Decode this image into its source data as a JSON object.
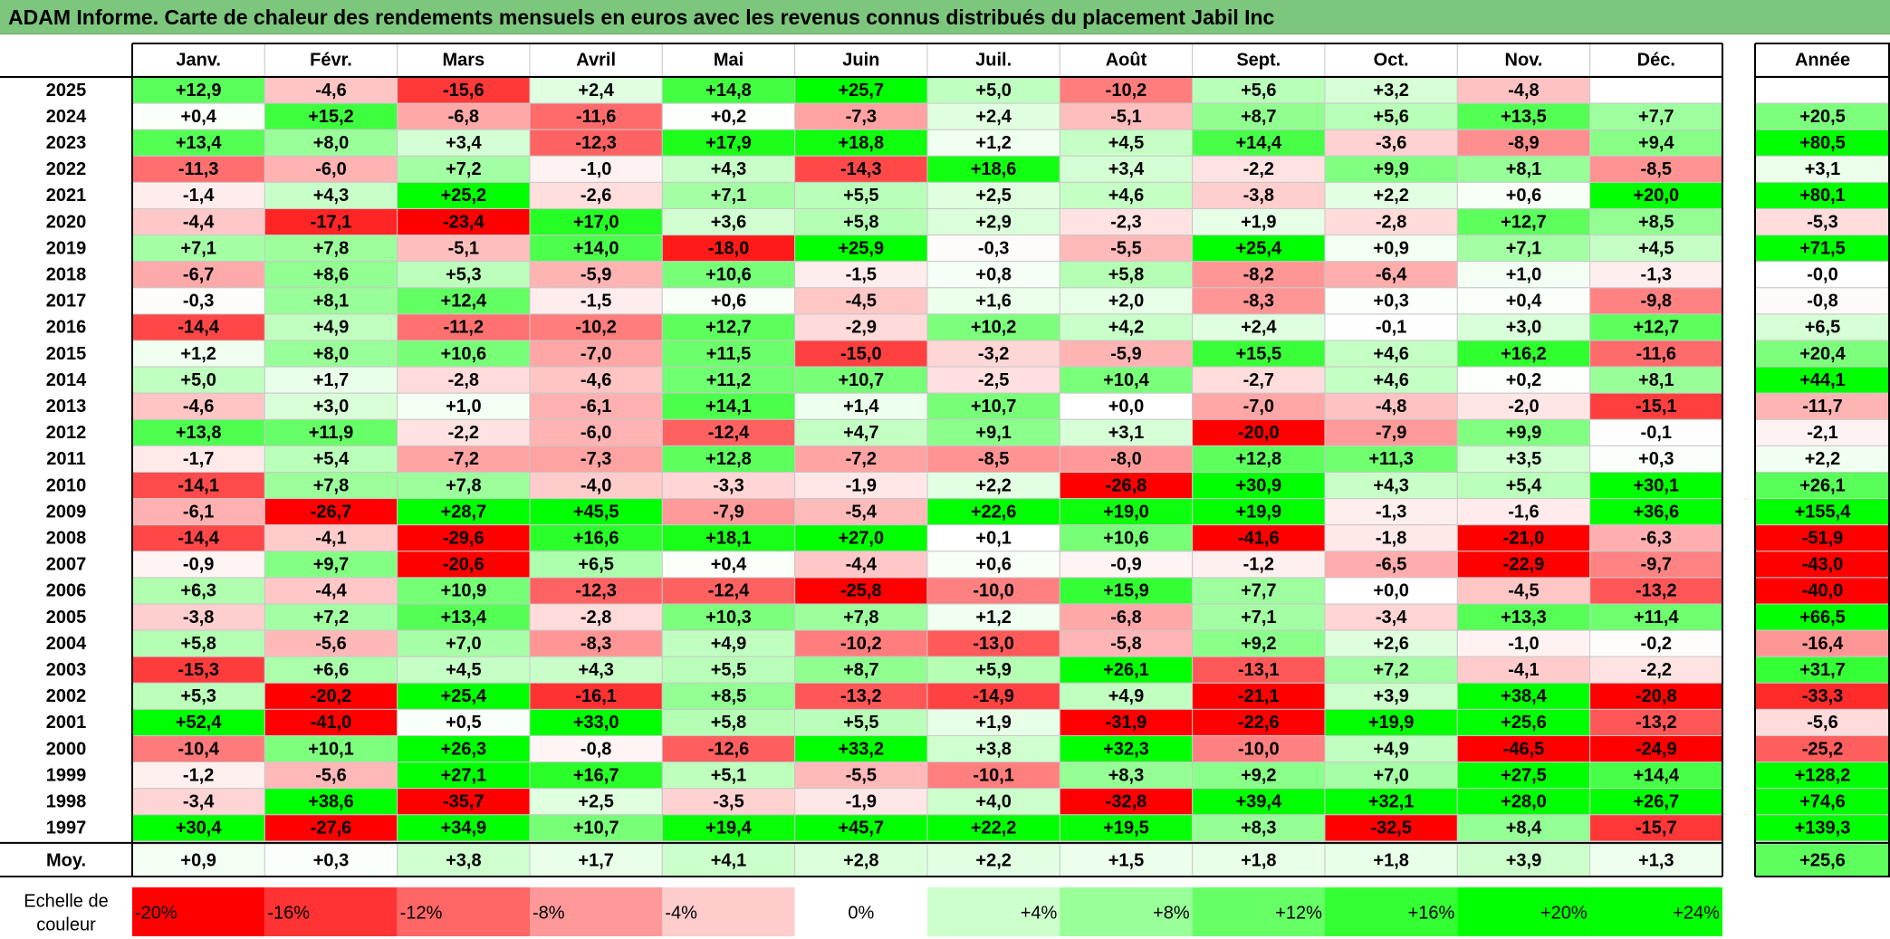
{
  "title": "ADAM Informe. Carte de chaleur des rendements mensuels en euros avec les revenus connus distribués du placement Jabil Inc",
  "chart_data": {
    "type": "heatmap",
    "title": "ADAM Informe. Carte de chaleur des rendements mensuels en euros avec les revenus connus distribués du placement Jabil Inc",
    "columns": [
      "Janv.",
      "Févr.",
      "Mars",
      "Avril",
      "Mai",
      "Juin",
      "Juil.",
      "Août",
      "Sept.",
      "Oct.",
      "Nov.",
      "Déc."
    ],
    "year_column_label": "Année",
    "rows": [
      {
        "year": "2025",
        "values": [
          "+12,9",
          "-4,6",
          "-15,6",
          "+2,4",
          "+14,8",
          "+25,7",
          "+5,0",
          "-10,2",
          "+5,6",
          "+3,2",
          "-4,8",
          ""
        ],
        "annual": ""
      },
      {
        "year": "2024",
        "values": [
          "+0,4",
          "+15,2",
          "-6,8",
          "-11,6",
          "+0,2",
          "-7,3",
          "+2,4",
          "-5,1",
          "+8,7",
          "+5,6",
          "+13,5",
          "+7,7"
        ],
        "annual": "+20,5"
      },
      {
        "year": "2023",
        "values": [
          "+13,4",
          "+8,0",
          "+3,4",
          "-12,3",
          "+17,9",
          "+18,8",
          "+1,2",
          "+4,5",
          "+14,4",
          "-3,6",
          "-8,9",
          "+9,4"
        ],
        "annual": "+80,5"
      },
      {
        "year": "2022",
        "values": [
          "-11,3",
          "-6,0",
          "+7,2",
          "-1,0",
          "+4,3",
          "-14,3",
          "+18,6",
          "+3,4",
          "-2,2",
          "+9,9",
          "+8,1",
          "-8,5"
        ],
        "annual": "+3,1"
      },
      {
        "year": "2021",
        "values": [
          "-1,4",
          "+4,3",
          "+25,2",
          "-2,6",
          "+7,1",
          "+5,5",
          "+2,5",
          "+4,6",
          "-3,8",
          "+2,2",
          "+0,6",
          "+20,0"
        ],
        "annual": "+80,1"
      },
      {
        "year": "2020",
        "values": [
          "-4,4",
          "-17,1",
          "-23,4",
          "+17,0",
          "+3,6",
          "+5,8",
          "+2,9",
          "-2,3",
          "+1,9",
          "-2,8",
          "+12,7",
          "+8,5"
        ],
        "annual": "-5,3"
      },
      {
        "year": "2019",
        "values": [
          "+7,1",
          "+7,8",
          "-5,1",
          "+14,0",
          "-18,0",
          "+25,9",
          "-0,3",
          "-5,5",
          "+25,4",
          "+0,9",
          "+7,1",
          "+4,5"
        ],
        "annual": "+71,5"
      },
      {
        "year": "2018",
        "values": [
          "-6,7",
          "+8,6",
          "+5,3",
          "-5,9",
          "+10,6",
          "-1,5",
          "+0,8",
          "+5,8",
          "-8,2",
          "-6,4",
          "+1,0",
          "-1,3"
        ],
        "annual": "-0,0"
      },
      {
        "year": "2017",
        "values": [
          "-0,3",
          "+8,1",
          "+12,4",
          "-1,5",
          "+0,6",
          "-4,5",
          "+1,6",
          "+2,0",
          "-8,3",
          "+0,3",
          "+0,4",
          "-9,8"
        ],
        "annual": "-0,8"
      },
      {
        "year": "2016",
        "values": [
          "-14,4",
          "+4,9",
          "-11,2",
          "-10,2",
          "+12,7",
          "-2,9",
          "+10,2",
          "+4,2",
          "+2,4",
          "-0,1",
          "+3,0",
          "+12,7"
        ],
        "annual": "+6,5"
      },
      {
        "year": "2015",
        "values": [
          "+1,2",
          "+8,0",
          "+10,6",
          "-7,0",
          "+11,5",
          "-15,0",
          "-3,2",
          "-5,9",
          "+15,5",
          "+4,6",
          "+16,2",
          "-11,6"
        ],
        "annual": "+20,4"
      },
      {
        "year": "2014",
        "values": [
          "+5,0",
          "+1,7",
          "-2,8",
          "-4,6",
          "+11,2",
          "+10,7",
          "-2,5",
          "+10,4",
          "-2,7",
          "+4,6",
          "+0,2",
          "+8,1"
        ],
        "annual": "+44,1"
      },
      {
        "year": "2013",
        "values": [
          "-4,6",
          "+3,0",
          "+1,0",
          "-6,1",
          "+14,1",
          "+1,4",
          "+10,7",
          "+0,0",
          "-7,0",
          "-4,8",
          "-2,0",
          "-15,1"
        ],
        "annual": "-11,7"
      },
      {
        "year": "2012",
        "values": [
          "+13,8",
          "+11,9",
          "-2,2",
          "-6,0",
          "-12,4",
          "+4,7",
          "+9,1",
          "+3,1",
          "-20,0",
          "-7,9",
          "+9,9",
          "-0,1"
        ],
        "annual": "-2,1"
      },
      {
        "year": "2011",
        "values": [
          "-1,7",
          "+5,4",
          "-7,2",
          "-7,3",
          "+12,8",
          "-7,2",
          "-8,5",
          "-8,0",
          "+12,8",
          "+11,3",
          "+3,5",
          "+0,3"
        ],
        "annual": "+2,2"
      },
      {
        "year": "2010",
        "values": [
          "-14,1",
          "+7,8",
          "+7,8",
          "-4,0",
          "-3,3",
          "-1,9",
          "+2,2",
          "-26,8",
          "+30,9",
          "+4,3",
          "+5,4",
          "+30,1"
        ],
        "annual": "+26,1"
      },
      {
        "year": "2009",
        "values": [
          "-6,1",
          "-26,7",
          "+28,7",
          "+45,5",
          "-7,9",
          "-5,4",
          "+22,6",
          "+19,0",
          "+19,9",
          "-1,3",
          "-1,6",
          "+36,6"
        ],
        "annual": "+155,4"
      },
      {
        "year": "2008",
        "values": [
          "-14,4",
          "-4,1",
          "-29,6",
          "+16,6",
          "+18,1",
          "+27,0",
          "+0,1",
          "+10,6",
          "-41,6",
          "-1,8",
          "-21,0",
          "-6,3"
        ],
        "annual": "-51,9"
      },
      {
        "year": "2007",
        "values": [
          "-0,9",
          "+9,7",
          "-20,6",
          "+6,5",
          "+0,4",
          "-4,4",
          "+0,6",
          "-0,9",
          "-1,2",
          "-6,5",
          "-22,9",
          "-9,7"
        ],
        "annual": "-43,0"
      },
      {
        "year": "2006",
        "values": [
          "+6,3",
          "-4,4",
          "+10,9",
          "-12,3",
          "-12,4",
          "-25,8",
          "-10,0",
          "+15,9",
          "+7,7",
          "+0,0",
          "-4,5",
          "-13,2"
        ],
        "annual": "-40,0"
      },
      {
        "year": "2005",
        "values": [
          "-3,8",
          "+7,2",
          "+13,4",
          "-2,8",
          "+10,3",
          "+7,8",
          "+1,2",
          "-6,8",
          "+7,1",
          "-3,4",
          "+13,3",
          "+11,4"
        ],
        "annual": "+66,5"
      },
      {
        "year": "2004",
        "values": [
          "+5,8",
          "-5,6",
          "+7,0",
          "-8,3",
          "+4,9",
          "-10,2",
          "-13,0",
          "-5,8",
          "+9,2",
          "+2,6",
          "-1,0",
          "-0,2"
        ],
        "annual": "-16,4"
      },
      {
        "year": "2003",
        "values": [
          "-15,3",
          "+6,6",
          "+4,5",
          "+4,3",
          "+5,5",
          "+8,7",
          "+5,9",
          "+26,1",
          "-13,1",
          "+7,2",
          "-4,1",
          "-2,2"
        ],
        "annual": "+31,7"
      },
      {
        "year": "2002",
        "values": [
          "+5,3",
          "-20,2",
          "+25,4",
          "-16,1",
          "+8,5",
          "-13,2",
          "-14,9",
          "+4,9",
          "-21,1",
          "+3,9",
          "+38,4",
          "-20,8"
        ],
        "annual": "-33,3"
      },
      {
        "year": "2001",
        "values": [
          "+52,4",
          "-41,0",
          "+0,5",
          "+33,0",
          "+5,8",
          "+5,5",
          "+1,9",
          "-31,9",
          "-22,6",
          "+19,9",
          "+25,6",
          "-13,2"
        ],
        "annual": "-5,6"
      },
      {
        "year": "2000",
        "values": [
          "-10,4",
          "+10,1",
          "+26,3",
          "-0,8",
          "-12,6",
          "+33,2",
          "+3,8",
          "+32,3",
          "-10,0",
          "+4,9",
          "-46,5",
          "-24,9"
        ],
        "annual": "-25,2"
      },
      {
        "year": "1999",
        "values": [
          "-1,2",
          "-5,6",
          "+27,1",
          "+16,7",
          "+5,1",
          "-5,5",
          "-10,1",
          "+8,3",
          "+9,2",
          "+7,0",
          "+27,5",
          "+14,4"
        ],
        "annual": "+128,2"
      },
      {
        "year": "1998",
        "values": [
          "-3,4",
          "+38,6",
          "-35,7",
          "+2,5",
          "-3,5",
          "-1,9",
          "+4,0",
          "-32,8",
          "+39,4",
          "+32,1",
          "+28,0",
          "+26,7"
        ],
        "annual": "+74,6"
      },
      {
        "year": "1997",
        "values": [
          "+30,4",
          "-27,6",
          "+34,9",
          "+10,7",
          "+19,4",
          "+45,7",
          "+22,2",
          "+19,5",
          "+8,3",
          "-32,5",
          "+8,4",
          "-15,7"
        ],
        "annual": "+139,3"
      }
    ],
    "average": {
      "label": "Moy.",
      "values": [
        "+0,9",
        "+0,3",
        "+3,8",
        "+1,7",
        "+4,1",
        "+2,8",
        "+2,2",
        "+1,5",
        "+1,8",
        "+1,8",
        "+3,9",
        "+1,3"
      ],
      "annual": "+25,6"
    },
    "scale": {
      "label_line1": "Echelle de",
      "label_line2": "couleur",
      "steps": [
        "-20%",
        "-16%",
        "-12%",
        "-8%",
        "-4%",
        "0%",
        "+4%",
        "+8%",
        "+12%",
        "+16%",
        "+20%",
        "+24%"
      ]
    },
    "colors": {
      "title_bg": "#7dc67d",
      "negative_max": "#ff0000",
      "neutral": "#ffffff",
      "positive_max": "#00ff00"
    }
  }
}
